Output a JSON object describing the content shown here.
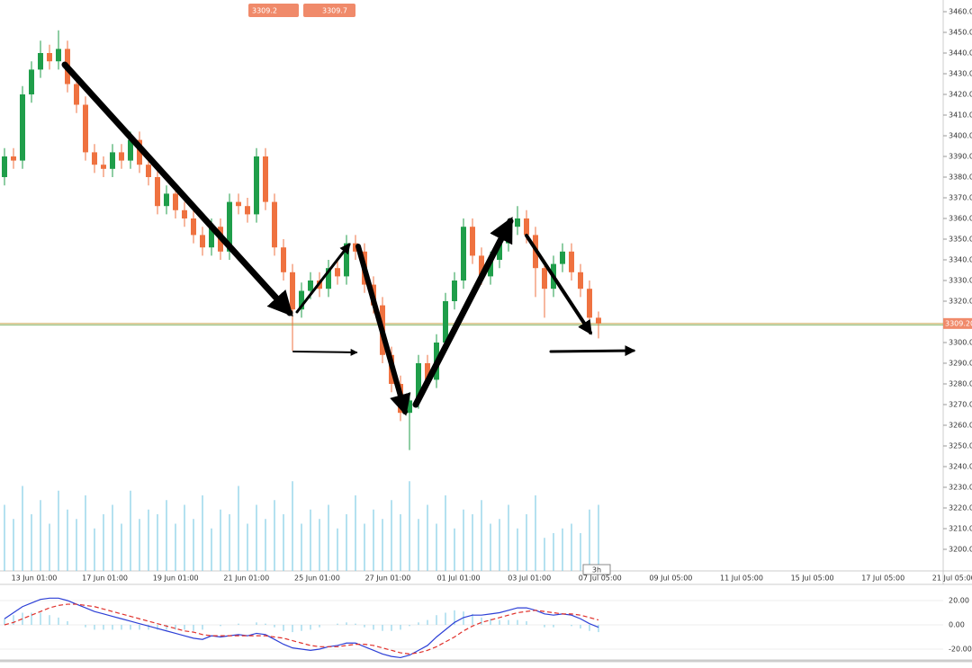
{
  "chart_data": {
    "type": "candlestick",
    "bid": "3309.2",
    "ask": "3309.7",
    "timeframe": "3h",
    "up_color": "#1f9e4a",
    "down_color": "#ef7240",
    "volume_color": "#83cde6",
    "ylim": [
      3195,
      3465
    ],
    "yticks": [
      {
        "value": 3200,
        "label": "3200.00"
      },
      {
        "value": 3210,
        "label": "3210.00"
      },
      {
        "value": 3220,
        "label": "3220.00"
      },
      {
        "value": 3230,
        "label": "3230.00"
      },
      {
        "value": 3240,
        "label": "3240.00"
      },
      {
        "value": 3250,
        "label": "3250.00"
      },
      {
        "value": 3260,
        "label": "3260.00"
      },
      {
        "value": 3270,
        "label": "3270.00"
      },
      {
        "value": 3280,
        "label": "3280.00"
      },
      {
        "value": 3290,
        "label": "3290.00"
      },
      {
        "value": 3300,
        "label": "3300.00"
      },
      {
        "value": 3310,
        "label": "3310.00"
      },
      {
        "value": 3320,
        "label": "3320.00"
      },
      {
        "value": 3330,
        "label": "3330.00"
      },
      {
        "value": 3340,
        "label": "3340.00"
      },
      {
        "value": 3350,
        "label": "3350.00"
      },
      {
        "value": 3360,
        "label": "3360.00"
      },
      {
        "value": 3370,
        "label": "3370.00"
      },
      {
        "value": 3380,
        "label": "3380.00"
      },
      {
        "value": 3390,
        "label": "3390.00"
      },
      {
        "value": 3400,
        "label": "3400.00"
      },
      {
        "value": 3410,
        "label": "3410.00"
      },
      {
        "value": 3420,
        "label": "3420.00"
      },
      {
        "value": 3430,
        "label": "3430.00"
      },
      {
        "value": 3440,
        "label": "3440.00"
      },
      {
        "value": 3450,
        "label": "3450.00"
      },
      {
        "value": 3460,
        "label": "3460.00"
      }
    ],
    "last_price": {
      "value": 3309.2,
      "label": "3309.20"
    },
    "time_labels": [
      "13 Jun 01:00",
      "17 Jun 01:00",
      "19 Jun 01:00",
      "21 Jun 01:00",
      "25 Jun 01:00",
      "27 Jun 01:00",
      "01 Jul 01:00",
      "03 Jul 01:00",
      "07 Jul 05:00",
      "09 Jul 05:00",
      "11 Jul 05:00",
      "15 Jul 05:00",
      "17 Jul 05:00",
      "21 Jul 05:00"
    ],
    "open": [
      3380,
      3390,
      3388,
      3420,
      3432,
      3440,
      3436,
      3442,
      3425,
      3415,
      3392,
      3386,
      3384,
      3392,
      3388,
      3398,
      3386,
      3380,
      3366,
      3372,
      3364,
      3360,
      3352,
      3346,
      3356,
      3344,
      3368,
      3366,
      3362,
      3390,
      3368,
      3346,
      3334,
      3316,
      3325,
      3330,
      3326,
      3336,
      3332,
      3348,
      3344,
      3328,
      3318,
      3294,
      3280,
      3266,
      3272,
      3290,
      3282,
      3300,
      3320,
      3330,
      3356,
      3342,
      3332,
      3340,
      3348,
      3356,
      3360,
      3352,
      3336,
      3326,
      3338,
      3344,
      3334,
      3326,
      3312
    ],
    "high": [
      3394,
      3394,
      3424,
      3436,
      3446,
      3444,
      3451,
      3446,
      3429,
      3419,
      3396,
      3390,
      3396,
      3396,
      3402,
      3402,
      3390,
      3384,
      3376,
      3376,
      3368,
      3364,
      3356,
      3360,
      3360,
      3372,
      3372,
      3370,
      3394,
      3394,
      3372,
      3350,
      3338,
      3329,
      3334,
      3334,
      3340,
      3340,
      3352,
      3352,
      3348,
      3332,
      3322,
      3298,
      3284,
      3276,
      3294,
      3294,
      3304,
      3324,
      3334,
      3360,
      3360,
      3346,
      3344,
      3352,
      3360,
      3366,
      3364,
      3356,
      3340,
      3342,
      3348,
      3348,
      3338,
      3330,
      3315
    ],
    "low": [
      3376,
      3384,
      3384,
      3416,
      3428,
      3432,
      3432,
      3421,
      3411,
      3388,
      3382,
      3380,
      3380,
      3384,
      3384,
      3382,
      3376,
      3362,
      3362,
      3360,
      3356,
      3348,
      3342,
      3342,
      3340,
      3340,
      3362,
      3358,
      3358,
      3364,
      3342,
      3330,
      3296,
      3312,
      3321,
      3322,
      3322,
      3328,
      3328,
      3340,
      3324,
      3314,
      3290,
      3276,
      3262,
      3248,
      3268,
      3278,
      3278,
      3296,
      3316,
      3326,
      3338,
      3328,
      3328,
      3336,
      3344,
      3352,
      3348,
      3322,
      3312,
      3322,
      3334,
      3330,
      3322,
      3304,
      3302
    ],
    "close": [
      3390,
      3388,
      3420,
      3432,
      3440,
      3436,
      3442,
      3425,
      3415,
      3392,
      3386,
      3384,
      3392,
      3388,
      3398,
      3386,
      3380,
      3366,
      3372,
      3364,
      3360,
      3352,
      3346,
      3356,
      3344,
      3368,
      3366,
      3362,
      3390,
      3368,
      3346,
      3334,
      3316,
      3325,
      3330,
      3326,
      3336,
      3332,
      3348,
      3344,
      3328,
      3318,
      3294,
      3280,
      3266,
      3272,
      3290,
      3282,
      3300,
      3320,
      3330,
      3356,
      3342,
      3332,
      3340,
      3348,
      3356,
      3360,
      3352,
      3336,
      3326,
      3338,
      3344,
      3334,
      3326,
      3312,
      3309.2
    ],
    "volume_lim": [
      0,
      100
    ],
    "volume": [
      70,
      55,
      90,
      60,
      75,
      50,
      85,
      65,
      55,
      80,
      45,
      60,
      70,
      50,
      85,
      55,
      65,
      60,
      75,
      50,
      70,
      55,
      80,
      45,
      65,
      60,
      90,
      50,
      70,
      55,
      75,
      60,
      95,
      50,
      65,
      55,
      70,
      45,
      60,
      80,
      50,
      65,
      55,
      75,
      60,
      95,
      55,
      70,
      50,
      80,
      45,
      65,
      60,
      75,
      50,
      55,
      70,
      45,
      60,
      80,
      35,
      40,
      45,
      50,
      40,
      65,
      70
    ],
    "macd_ylim": [
      -30,
      30
    ],
    "macd_yticks": [
      {
        "value": 20,
        "label": "20.00"
      },
      {
        "value": 0,
        "label": "0.00"
      },
      {
        "value": -20,
        "label": "-20.00"
      }
    ],
    "macd": [
      5,
      10,
      15,
      18,
      21,
      22,
      22,
      20,
      17,
      14,
      11,
      9,
      7,
      5,
      3,
      1,
      -1,
      -3,
      -5,
      -7,
      -9,
      -11,
      -12,
      -9,
      -10,
      -9,
      -8,
      -9,
      -7,
      -8,
      -12,
      -16,
      -19,
      -20,
      -21,
      -20,
      -18,
      -17,
      -15,
      -15,
      -18,
      -21,
      -24,
      -26,
      -27,
      -25,
      -21,
      -17,
      -10,
      -4,
      2,
      6,
      8,
      8,
      9,
      10,
      12,
      14,
      14,
      12,
      9,
      8,
      9,
      8,
      5,
      1,
      -2
    ],
    "signal": [
      0,
      2,
      5,
      8,
      11,
      14,
      16,
      17,
      17,
      16,
      15,
      13,
      11,
      9,
      7,
      5,
      3,
      1,
      -1,
      -3,
      -5,
      -6,
      -8,
      -9,
      -9,
      -9,
      -9,
      -9,
      -9,
      -9,
      -10,
      -11,
      -13,
      -15,
      -17,
      -18,
      -18,
      -18,
      -17,
      -16,
      -16,
      -17,
      -19,
      -21,
      -23,
      -24,
      -23,
      -21,
      -18,
      -14,
      -10,
      -5,
      -1,
      2,
      4,
      6,
      8,
      10,
      11,
      12,
      11,
      10,
      9,
      9,
      8,
      6,
      4
    ],
    "histogram": [
      5,
      8,
      10,
      10,
      10,
      8,
      6,
      3,
      0,
      -2,
      -4,
      -4,
      -4,
      -4,
      -4,
      -4,
      -4,
      -4,
      -4,
      -4,
      -4,
      -5,
      -4,
      0,
      -1,
      0,
      1,
      0,
      2,
      1,
      -2,
      -5,
      -6,
      -5,
      -4,
      -2,
      0,
      1,
      2,
      1,
      -2,
      -4,
      -5,
      -5,
      -4,
      -1,
      2,
      4,
      8,
      10,
      12,
      11,
      9,
      6,
      5,
      4,
      4,
      4,
      3,
      0,
      -2,
      -2,
      0,
      -1,
      -3,
      -5,
      -6
    ],
    "macd_color": "#2c3fd6",
    "signal_color": "#e0302a",
    "histogram_color": "#8fd3e8"
  }
}
